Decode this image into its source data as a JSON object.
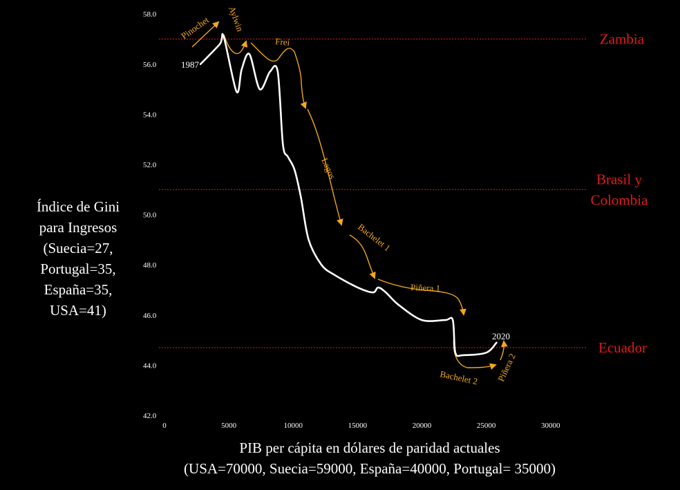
{
  "chart_data": {
    "type": "line",
    "ylabel_lines": [
      "Índice de Gini",
      "para Ingresos",
      "(Suecia=27,",
      "Portugal=35,",
      "España=35,",
      "USA=41)"
    ],
    "xlabel_lines": [
      "PIB per cápita en dólares de paridad actuales",
      "(USA=70000, Suecia=59000, España=40000, Portugal= 35000)"
    ],
    "xlim": [
      0,
      32000
    ],
    "ylim": [
      42,
      58
    ],
    "x_ticks": [
      0,
      5000,
      10000,
      15000,
      20000,
      25000,
      30000
    ],
    "y_ticks": [
      "42.0",
      "44.0",
      "46.0",
      "48.0",
      "50.0",
      "52.0",
      "54.0",
      "56.0",
      "58.0"
    ],
    "grid": false,
    "series": [
      {
        "color": "#ffffff",
        "x": [
          2800,
          4300,
          4600,
          5600,
          6000,
          6600,
          7400,
          8200,
          8800,
          9200,
          9600,
          10100,
          10600,
          11200,
          12200,
          13200,
          15000,
          16200,
          16600,
          17200,
          18200,
          20000,
          21800,
          22400,
          22600,
          23200,
          25000,
          25800
        ],
        "y": [
          56.0,
          56.8,
          57.1,
          54.9,
          55.8,
          56.4,
          55.0,
          55.7,
          55.7,
          52.8,
          52.3,
          51.8,
          50.7,
          49.0,
          48.0,
          47.6,
          47.1,
          46.9,
          47.1,
          46.9,
          46.4,
          45.8,
          45.8,
          45.8,
          44.5,
          44.4,
          44.5,
          44.9
        ]
      }
    ],
    "reference_lines": [
      {
        "y": 57.0,
        "label_lines": [
          "Zambia"
        ],
        "color": "#e11b1b"
      },
      {
        "y": 51.0,
        "label_lines": [
          "Brasil y",
          "Colombia"
        ],
        "color": "#e11b1b"
      },
      {
        "y": 44.7,
        "label_lines": [
          "Ecuador"
        ],
        "color": "#e11b1b"
      }
    ],
    "point_labels": [
      {
        "text": "1987",
        "x": 2800,
        "y": 56.0
      },
      {
        "text": "2020",
        "x": 25800,
        "y": 44.9
      }
    ],
    "annotations": [
      {
        "text": "Pinochet",
        "color": "#f2a81c"
      },
      {
        "text": "Aylwin",
        "color": "#f2a81c"
      },
      {
        "text": "Frei",
        "color": "#f2a81c"
      },
      {
        "text": "Lagos",
        "color": "#f2a81c"
      },
      {
        "text": "Bachelet 1",
        "color": "#f2a81c"
      },
      {
        "text": "Piñera 1",
        "color": "#f2a81c"
      },
      {
        "text": "Bachelet 2",
        "color": "#f2a81c"
      },
      {
        "text": "Piñera 2",
        "color": "#f2a81c"
      }
    ]
  }
}
